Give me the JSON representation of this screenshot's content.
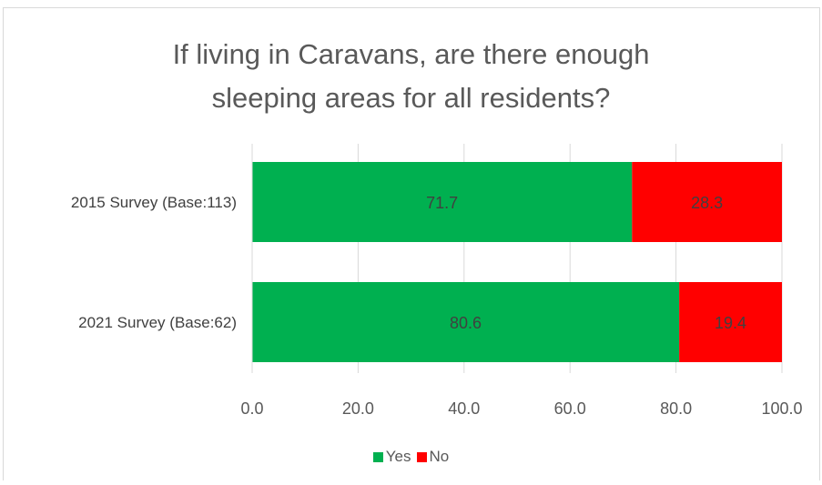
{
  "chart_data": {
    "type": "bar",
    "orientation": "horizontal",
    "stacked": true,
    "title": "If living in Caravans, are there enough sleeping areas for all residents?",
    "categories": [
      "2015 Survey (Base:113)",
      "2021 Survey (Base:62)"
    ],
    "series": [
      {
        "name": "Yes",
        "color": "#00b050",
        "values": [
          71.7,
          80.6
        ]
      },
      {
        "name": "No",
        "color": "#ff0000",
        "values": [
          28.3,
          19.4
        ]
      }
    ],
    "xlim": [
      0,
      100
    ],
    "xticks": [
      "0.0",
      "20.0",
      "40.0",
      "60.0",
      "80.0",
      "100.0"
    ],
    "grid": "vertical",
    "legend": "bottom"
  }
}
